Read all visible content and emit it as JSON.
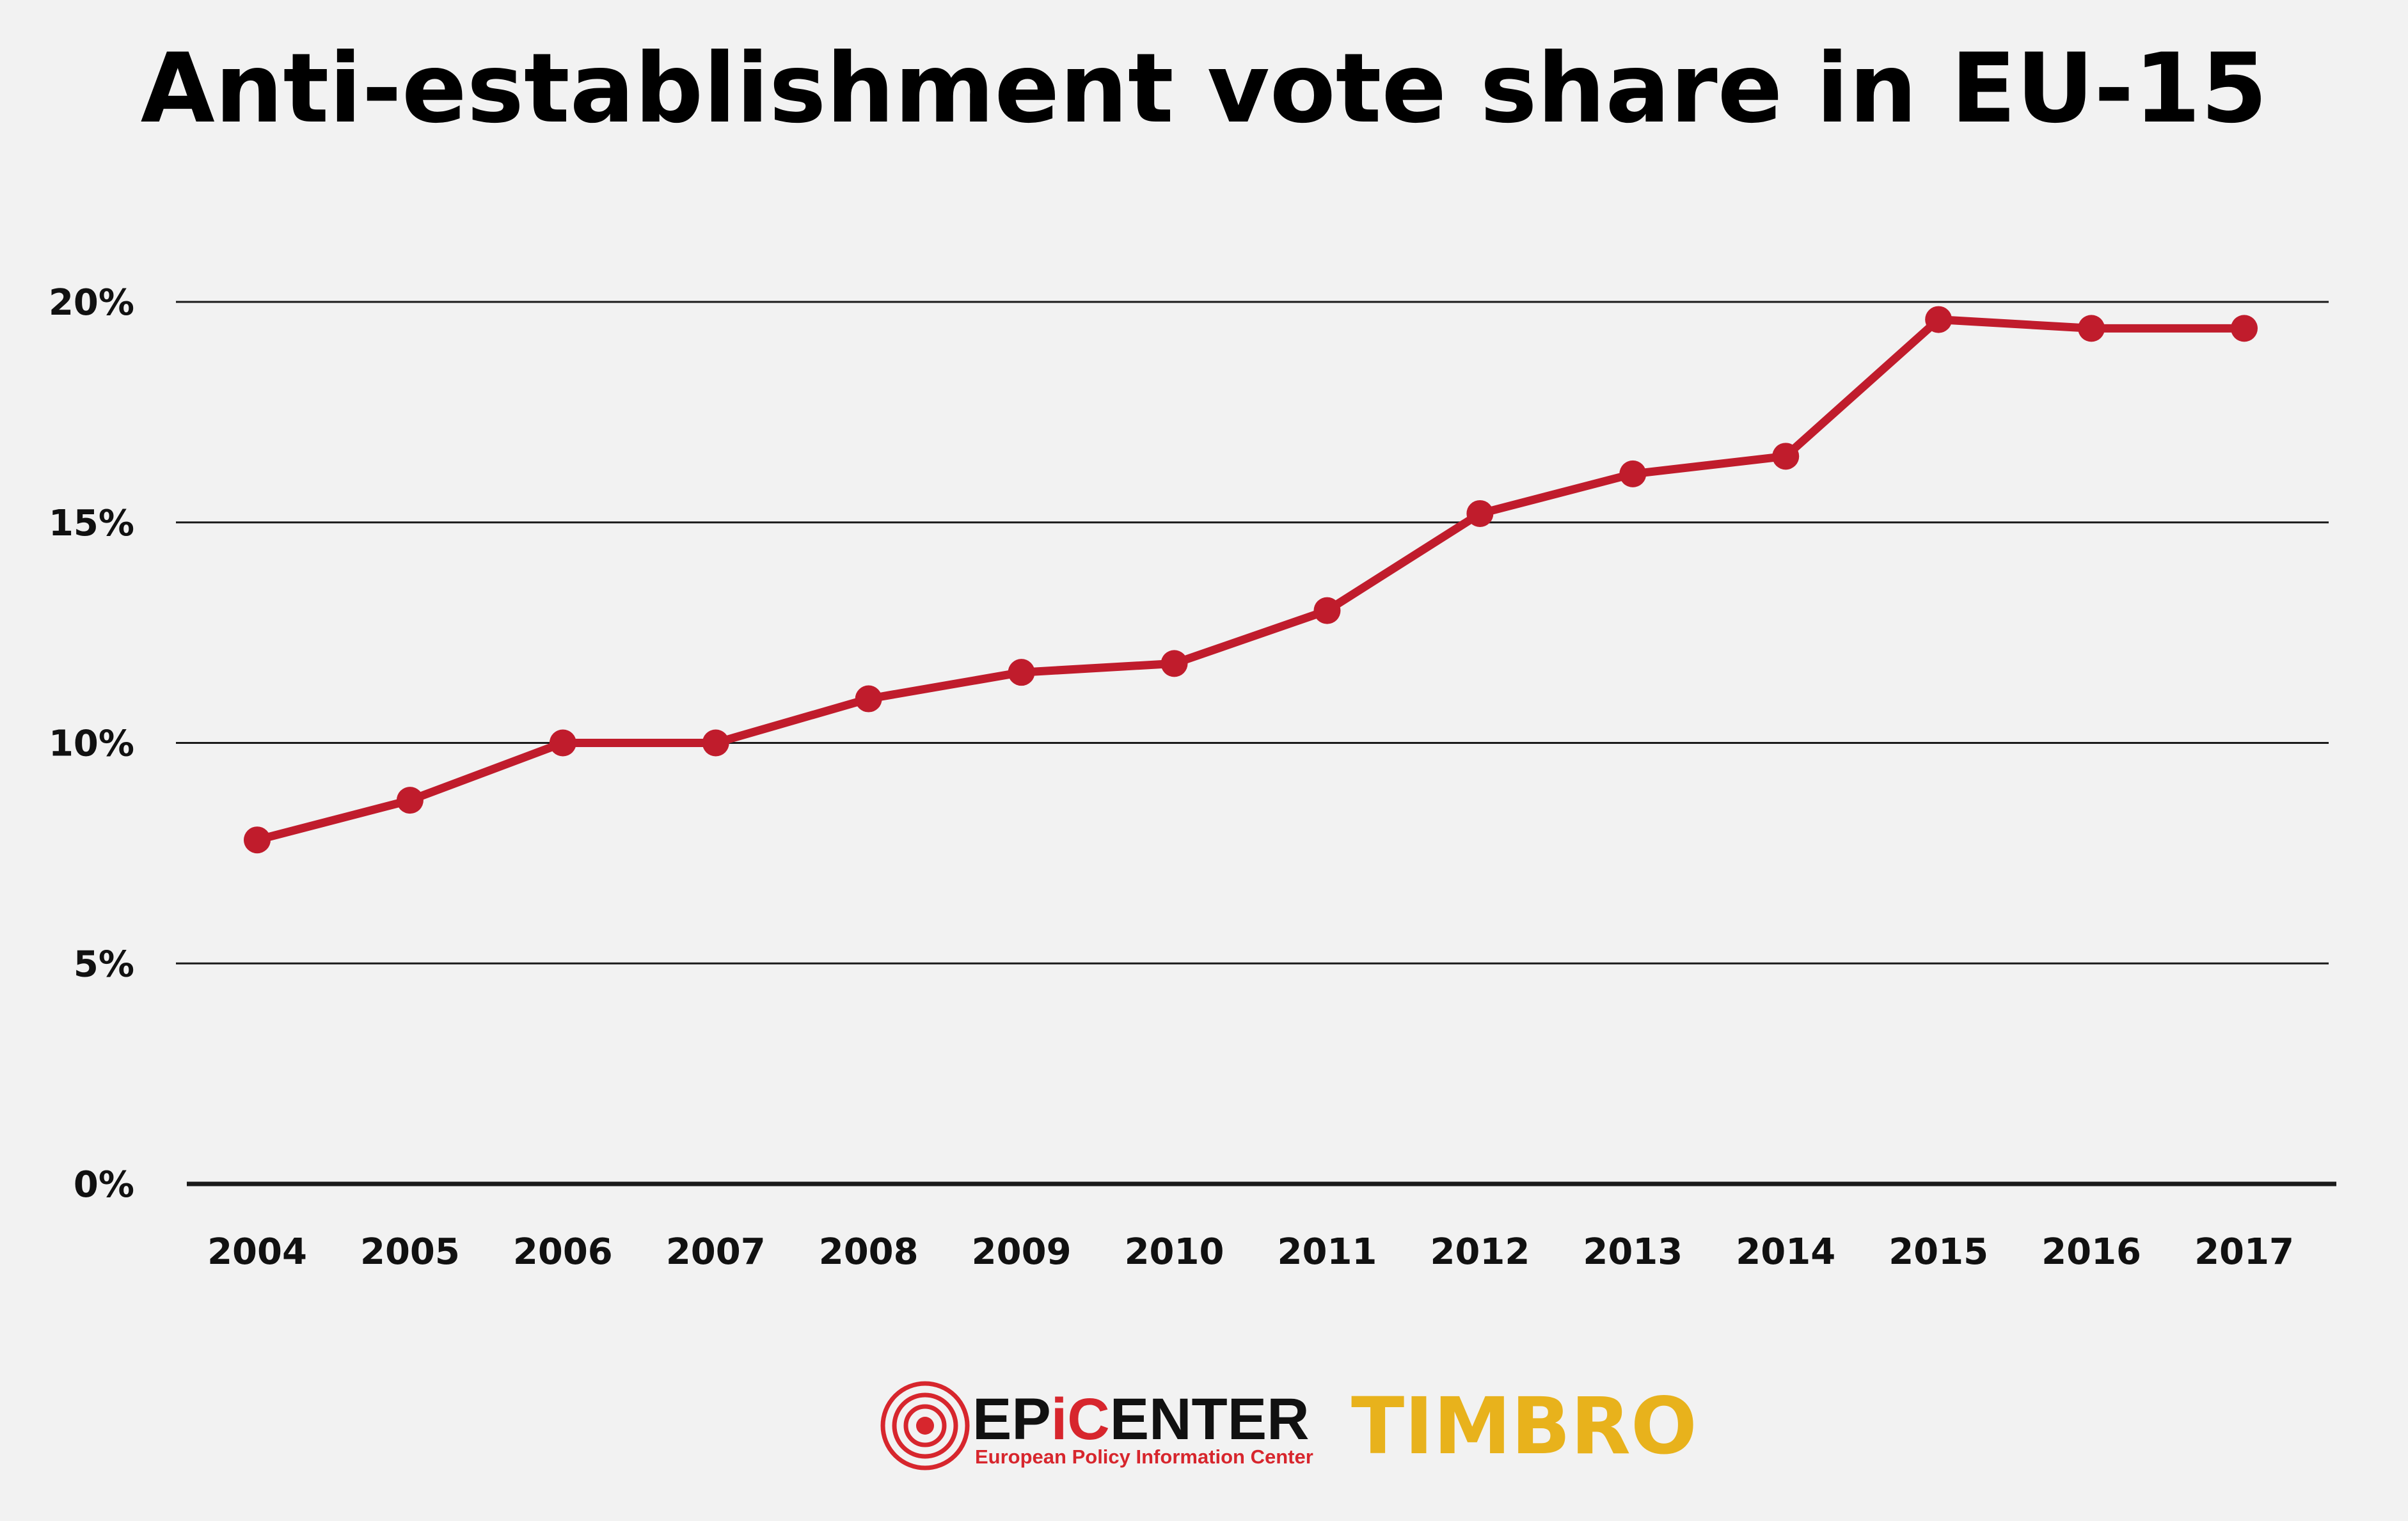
{
  "chart_data": {
    "type": "line",
    "title": "Anti-establishment vote share in EU-15",
    "xlabel": "",
    "ylabel": "",
    "ylim": [
      0,
      20
    ],
    "yticks": [
      "0%",
      "5%",
      "10%",
      "15%",
      "20%"
    ],
    "ytick_values": [
      0,
      5,
      10,
      15,
      20
    ],
    "categories": [
      "2004",
      "2005",
      "2006",
      "2007",
      "2008",
      "2009",
      "2010",
      "2011",
      "2012",
      "2013",
      "2014",
      "2015",
      "2016",
      "2017"
    ],
    "series": [
      {
        "name": "Anti-establishment vote share",
        "values": [
          7.8,
          8.7,
          10.0,
          10.0,
          11.0,
          11.6,
          11.8,
          13.0,
          15.2,
          16.1,
          16.5,
          19.6,
          19.4,
          19.4
        ],
        "color": "#c01c2c",
        "marker": "circle"
      }
    ],
    "grid": true,
    "legend": "none"
  },
  "logos": {
    "epicenter": {
      "name_part1": "EP",
      "name_part2": "i",
      "name_part3": "C",
      "name_part4": "ENTER",
      "subtitle": "European Policy Information Center",
      "accent_color": "#d7262d",
      "icon": "concentric-circles-icon"
    },
    "timbro": {
      "name": "TIMBRO",
      "color": "#e8b21c"
    }
  }
}
